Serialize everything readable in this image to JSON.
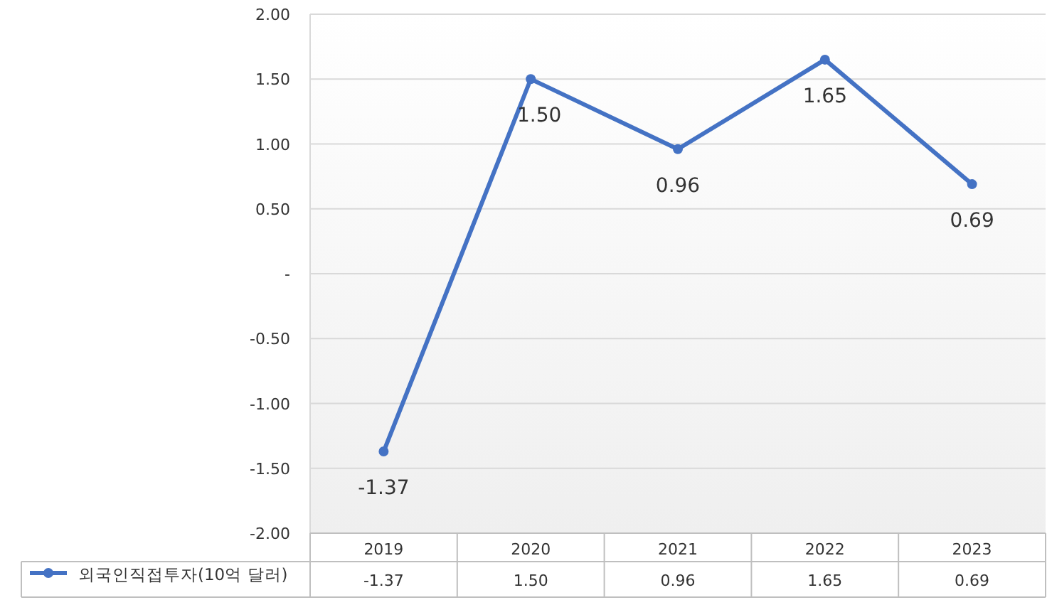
{
  "chart_data": {
    "type": "line",
    "categories": [
      "2019",
      "2020",
      "2021",
      "2022",
      "2023"
    ],
    "series": [
      {
        "name": "외국인직접투자(10억 달러)",
        "color": "#4472c4",
        "values": [
          -1.37,
          1.5,
          0.96,
          1.65,
          0.69
        ],
        "value_labels": [
          "-1.37",
          "1.50",
          "0.96",
          "1.65",
          "0.69"
        ]
      }
    ],
    "ylim": [
      -2,
      2
    ],
    "yticks": [
      {
        "value": 2,
        "label": "2.00"
      },
      {
        "value": 1.5,
        "label": "1.50"
      },
      {
        "value": 1,
        "label": "1.00"
      },
      {
        "value": 0.5,
        "label": "0.50"
      },
      {
        "value": 0,
        "label": "-"
      },
      {
        "value": -0.5,
        "label": "-0.50"
      },
      {
        "value": -1,
        "label": "-1.00"
      },
      {
        "value": -1.5,
        "label": "-1.50"
      },
      {
        "value": -2,
        "label": "-2.00"
      }
    ],
    "grid": "y",
    "legend": "bottom",
    "marker": "circle",
    "line_style": "solid"
  }
}
